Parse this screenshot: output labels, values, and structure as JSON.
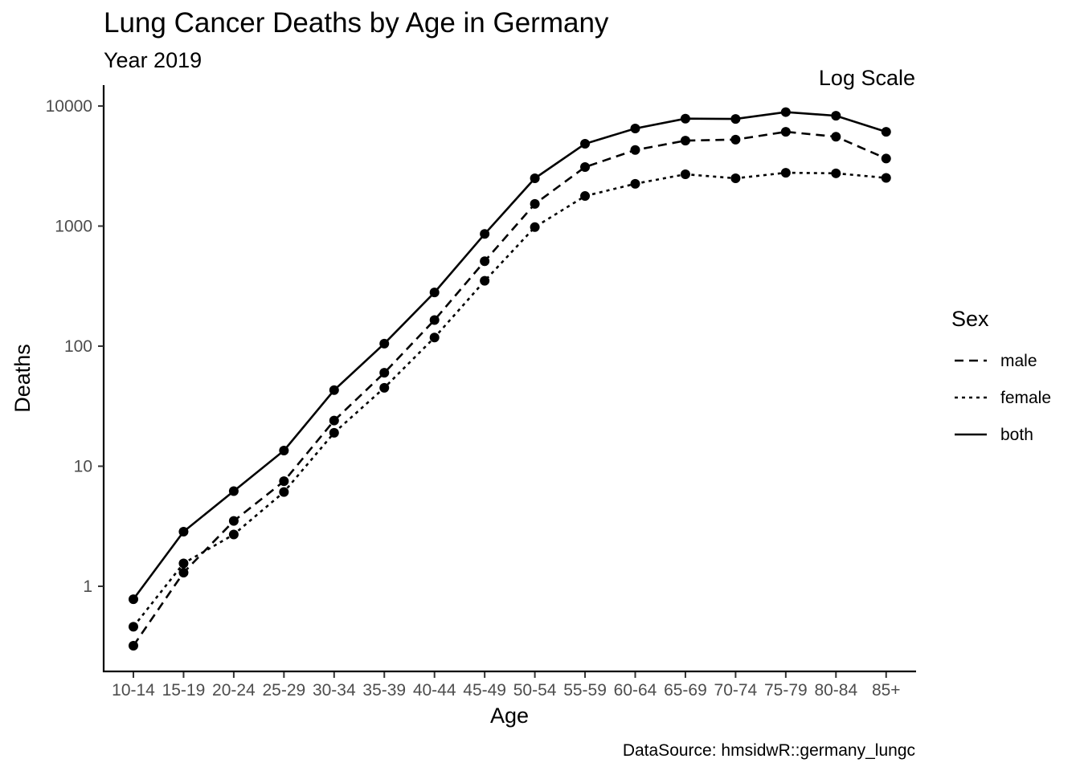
{
  "chart_data": {
    "type": "line",
    "title": "Lung Cancer Deaths by Age in Germany",
    "subtitle": "Year 2019",
    "annotation": "Log Scale",
    "xlabel": "Age",
    "ylabel": "Deaths",
    "caption": "DataSource: hmsidwR::germany_lungc",
    "y_scale": "log10",
    "ylim": [
      0.22,
      14000
    ],
    "y_ticks": [
      1,
      10,
      100,
      1000,
      10000
    ],
    "y_tick_labels": [
      "1",
      "10",
      "100",
      "1000",
      "10000"
    ],
    "grid": false,
    "legend_position": "right",
    "legend_title": "Sex",
    "categories": [
      "10-14",
      "15-19",
      "20-24",
      "25-29",
      "30-34",
      "35-39",
      "40-44",
      "45-49",
      "50-54",
      "55-59",
      "60-64",
      "65-69",
      "70-74",
      "75-79",
      "80-84",
      "85+"
    ],
    "series": [
      {
        "name": "male",
        "line": "dashed",
        "values": [
          0.32,
          1.3,
          3.5,
          7.5,
          24,
          60,
          165,
          510,
          1530,
          3100,
          4300,
          5150,
          5250,
          6100,
          5550,
          3650
        ]
      },
      {
        "name": "female",
        "line": "dotted",
        "values": [
          0.46,
          1.55,
          2.7,
          6.1,
          19,
          45,
          118,
          350,
          980,
          1780,
          2250,
          2700,
          2500,
          2780,
          2750,
          2520
        ]
      },
      {
        "name": "both",
        "line": "solid",
        "values": [
          0.78,
          2.85,
          6.2,
          13.5,
          43,
          105,
          280,
          860,
          2500,
          4850,
          6500,
          7850,
          7800,
          8900,
          8300,
          6100
        ]
      }
    ]
  }
}
